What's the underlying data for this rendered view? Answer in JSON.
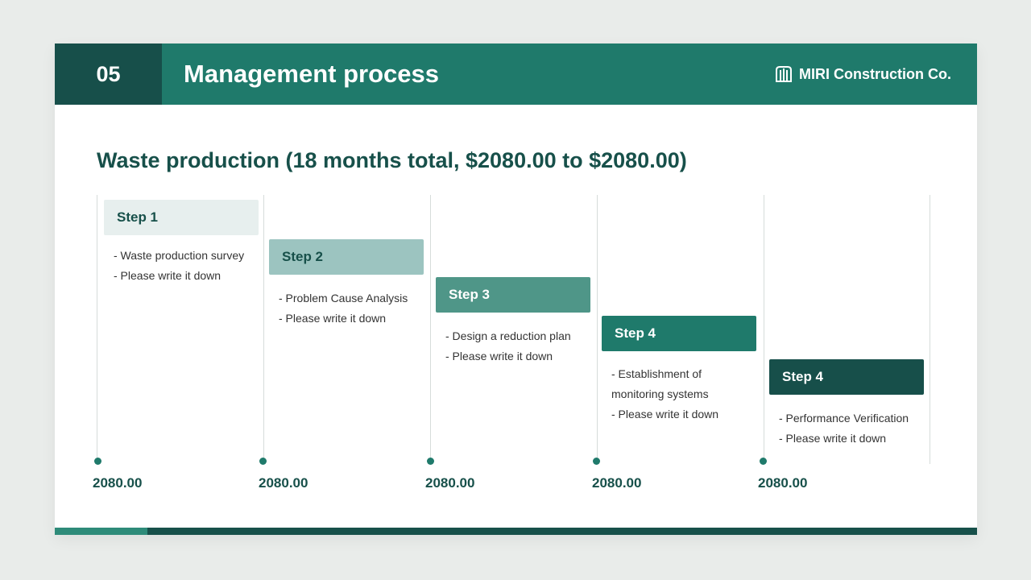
{
  "header": {
    "section_number": "05",
    "title": "Management process",
    "brand": "MIRI Construction Co.",
    "brand_icon": "building-logo-icon"
  },
  "subtitle": "Waste production (18 months total, $2080.00 to $2080.00)",
  "colors": {
    "header": "#1f7a6b",
    "header_dark": "#174f4a",
    "step1": "#e7efee",
    "step2": "#9cc4c0",
    "step3": "#4f9688",
    "step4": "#1f7a6b",
    "step5": "#174f4a"
  },
  "steps": [
    {
      "label": "Step 1",
      "lines": [
        "- Waste production survey",
        "- Please write it down"
      ],
      "value": "2080.00"
    },
    {
      "label": "Step 2",
      "lines": [
        "- Problem Cause Analysis",
        "- Please write it down"
      ],
      "value": "2080.00"
    },
    {
      "label": "Step 3",
      "lines": [
        "- Design a reduction plan",
        "- Please write it down"
      ],
      "value": "2080.00"
    },
    {
      "label": "Step 4",
      "lines": [
        "- Establishment of monitoring systems",
        "- Please write it down"
      ],
      "value": "2080.00"
    },
    {
      "label": "Step 4",
      "lines": [
        "- Performance Verification",
        "- Please write it down"
      ],
      "value": "2080.00"
    }
  ]
}
